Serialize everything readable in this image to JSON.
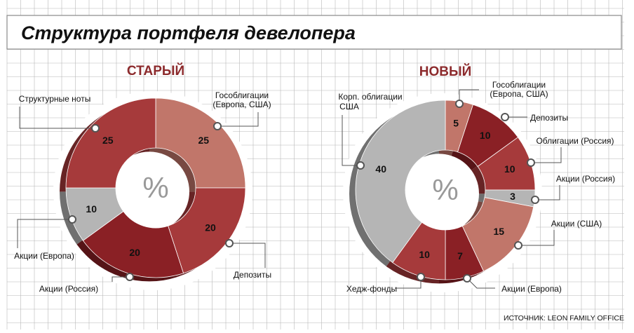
{
  "title": "Структура портфеля девелопера",
  "source": "ИСТОЧНИК: LEON FAMILY OFFICE",
  "center_symbol": "%",
  "colors": {
    "accent_title": "#8c2a2c",
    "grid": "#b8b8b8",
    "light_red": "#c1766a",
    "mid_red": "#a63a3b",
    "dark_red": "#8a2025",
    "gray": "#b5b5b5"
  },
  "chart_data": [
    {
      "type": "pie",
      "title": "СТАРЫЙ",
      "unit": "%",
      "slices": [
        {
          "label": "Гособлигации (Европа, США)",
          "value": 25,
          "color": "#c1766a"
        },
        {
          "label": "Депозиты",
          "value": 20,
          "color": "#a63a3b"
        },
        {
          "label": "Акции (Россия)",
          "value": 20,
          "color": "#8a2025"
        },
        {
          "label": "Акции (Европа)",
          "value": 10,
          "color": "#b5b5b5"
        },
        {
          "label": "Структурные ноты",
          "value": 25,
          "color": "#a63a3b"
        }
      ]
    },
    {
      "type": "pie",
      "title": "НОВЫЙ",
      "unit": "%",
      "slices": [
        {
          "label": "Гособлигации (Европа, США)",
          "value": 5,
          "color": "#c1766a"
        },
        {
          "label": "Депозиты",
          "value": 10,
          "color": "#8a2025"
        },
        {
          "label": "Облигации (Россия)",
          "value": 10,
          "color": "#a63a3b"
        },
        {
          "label": "Акции (Россия)",
          "value": 3,
          "color": "#b5b5b5"
        },
        {
          "label": "Акции (США)",
          "value": 15,
          "color": "#c1766a"
        },
        {
          "label": "Акции (Европа)",
          "value": 7,
          "color": "#8a2025"
        },
        {
          "label": "Хедж-фонды",
          "value": 10,
          "color": "#a63a3b"
        },
        {
          "label": "Корп. облигации США",
          "value": 40,
          "color": "#b5b5b5"
        }
      ]
    }
  ]
}
